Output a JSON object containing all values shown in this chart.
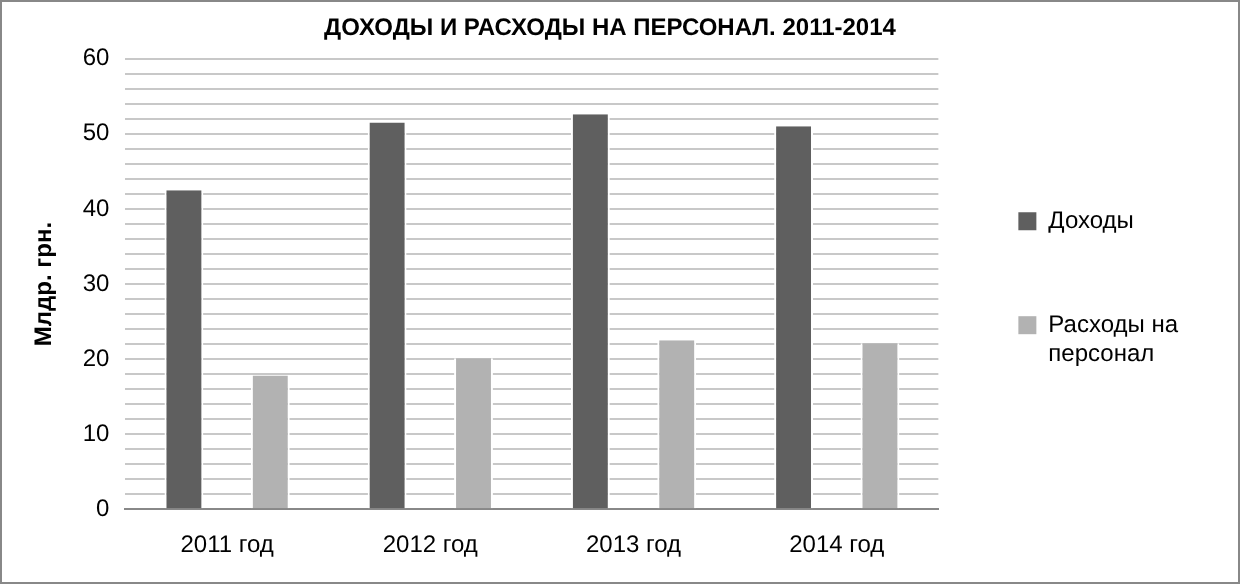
{
  "chart_data": {
    "type": "bar",
    "title": "ДОХОДЫ И РАСХОДЫ НА ПЕРСОНАЛ. 2011-2014",
    "ylabel": "Млдр. грн.",
    "categories": [
      "2011 год",
      "2012 год",
      "2013 год",
      "2014 год"
    ],
    "series": [
      {
        "name": "Доходы",
        "color": "#5f5f5f",
        "values": [
          42.5,
          51.5,
          52.6,
          51
        ]
      },
      {
        "name": "Расходы на персонал",
        "color": "#b2b2b2",
        "values": [
          17.8,
          20.1,
          22.5,
          22.1
        ]
      }
    ],
    "ylim": [
      0,
      60
    ],
    "yticks": [
      0,
      {
        "value": 2,
        "label": null
      },
      {
        "value": 4,
        "label": null
      },
      {
        "value": 6,
        "label": null
      },
      {
        "value": 8,
        "label": null
      },
      10,
      {
        "value": 12,
        "label": null
      },
      {
        "value": 14,
        "label": null
      },
      {
        "value": 16,
        "label": null
      },
      {
        "value": 18,
        "label": null
      },
      20,
      {
        "value": 22,
        "label": null
      },
      {
        "value": 24,
        "label": null
      },
      {
        "value": 26,
        "label": null
      },
      {
        "value": 28,
        "label": null
      },
      30,
      {
        "value": 32,
        "label": null
      },
      {
        "value": 34,
        "label": null
      },
      {
        "value": 36,
        "label": null
      },
      {
        "value": 38,
        "label": null
      },
      40,
      {
        "value": 42,
        "label": null
      },
      {
        "value": 44,
        "label": null
      },
      {
        "value": 46,
        "label": null
      },
      {
        "value": 48,
        "label": null
      },
      50,
      {
        "value": 52,
        "label": null
      },
      {
        "value": 54,
        "label": null
      },
      {
        "value": 56,
        "label": null
      },
      {
        "value": 58,
        "label": null
      },
      60
    ],
    "grid": "y",
    "legend": "right"
  }
}
